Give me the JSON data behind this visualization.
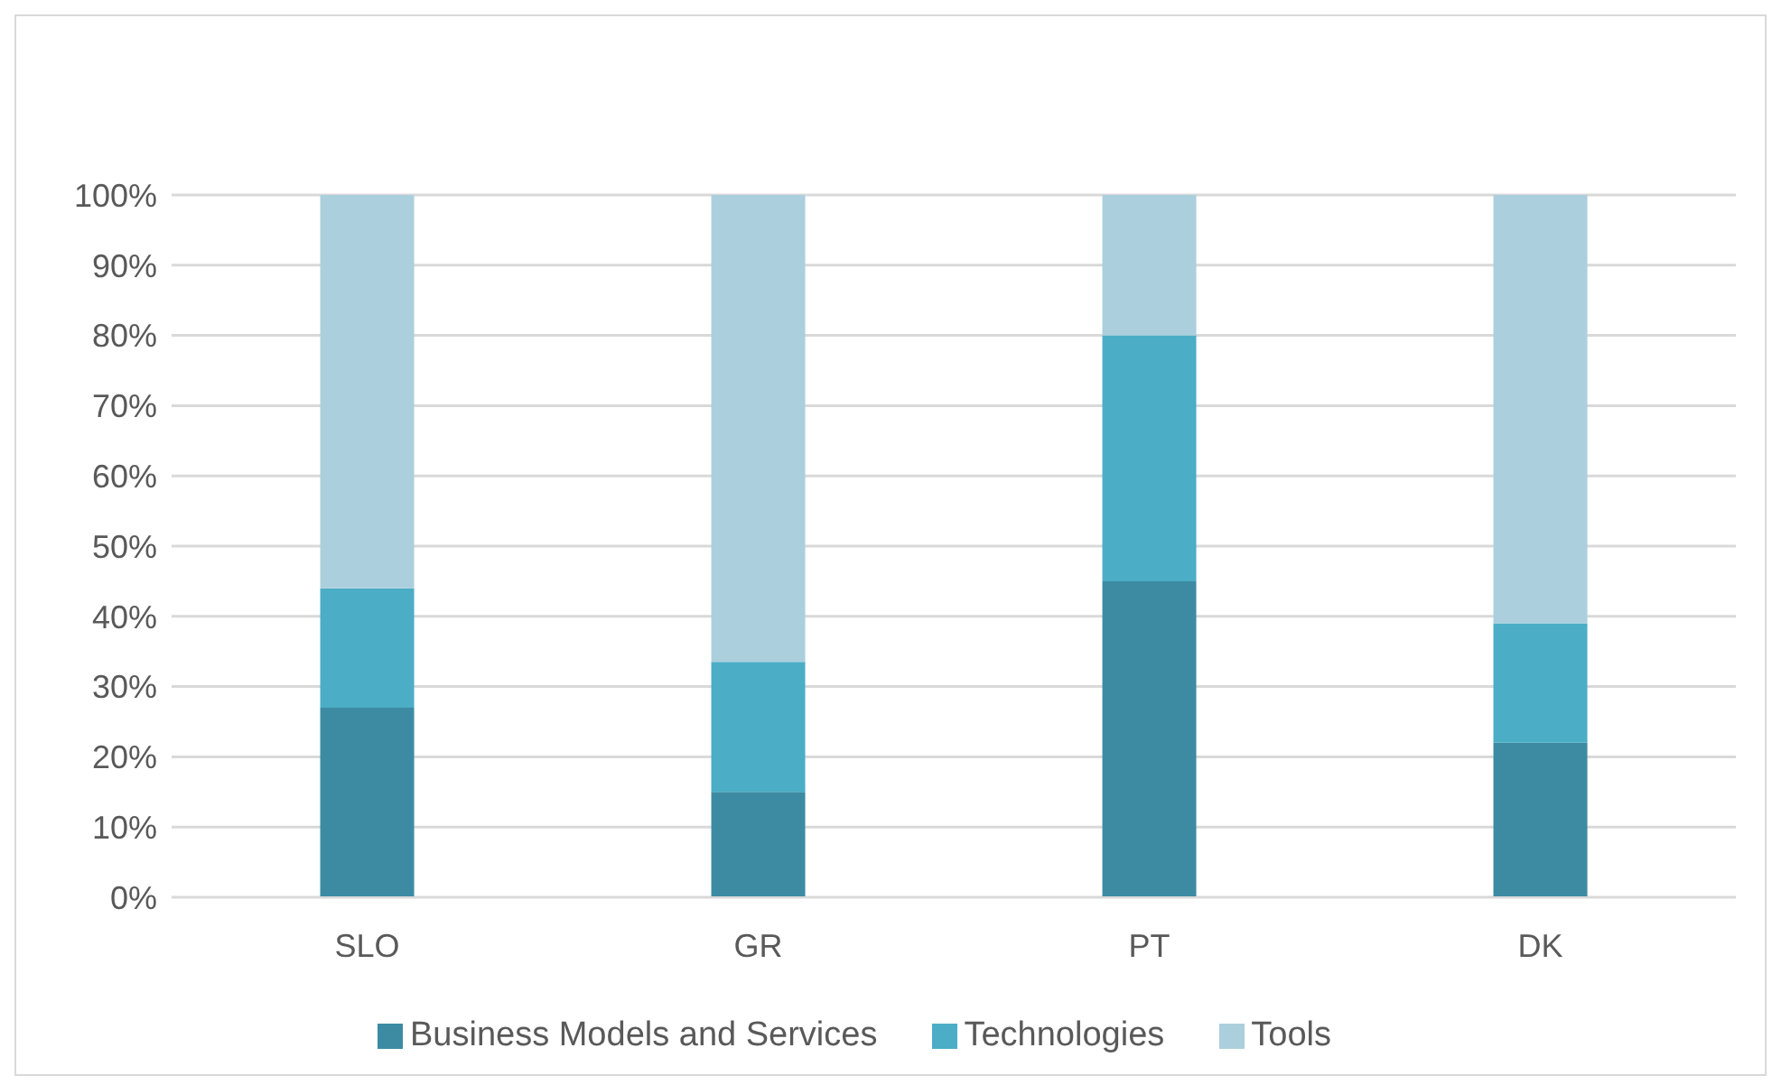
{
  "chart_data": {
    "type": "bar",
    "stacked": true,
    "categories": [
      "SLO",
      "GR",
      "PT",
      "DK"
    ],
    "series": [
      {
        "name": "Business Models and Services",
        "color": "#3c8ba3",
        "values": [
          27,
          15,
          45,
          22
        ]
      },
      {
        "name": "Technologies",
        "color": "#4badc6",
        "values": [
          17,
          18.5,
          35,
          17
        ]
      },
      {
        "name": "Tools",
        "color": "#abcfdd",
        "values": [
          56,
          66.5,
          20,
          61
        ]
      }
    ],
    "ylim": [
      0,
      100
    ],
    "yticks": [
      {
        "value": 0,
        "label": "0%"
      },
      {
        "value": 10,
        "label": "10%"
      },
      {
        "value": 20,
        "label": "20%"
      },
      {
        "value": 30,
        "label": "30%"
      },
      {
        "value": 40,
        "label": "40%"
      },
      {
        "value": 50,
        "label": "50%"
      },
      {
        "value": 60,
        "label": "60%"
      },
      {
        "value": 70,
        "label": "70%"
      },
      {
        "value": 80,
        "label": "80%"
      },
      {
        "value": 90,
        "label": "90%"
      },
      {
        "value": 100,
        "label": "100%"
      }
    ],
    "grid": "y",
    "legend": "bottom"
  }
}
